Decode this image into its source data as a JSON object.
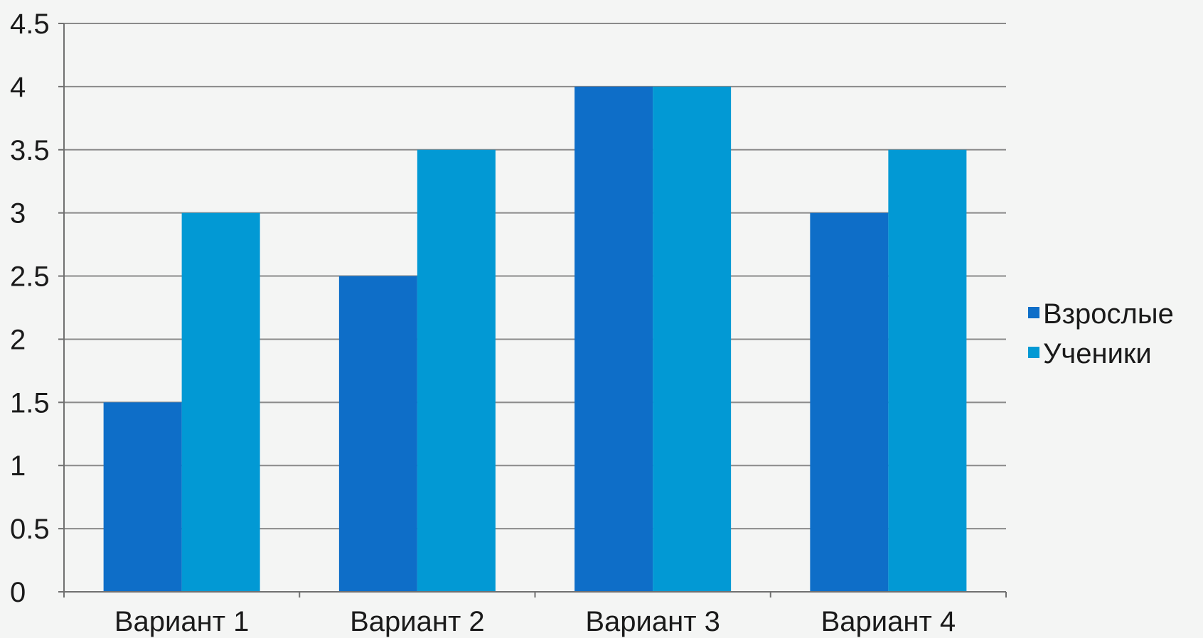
{
  "chart_data": {
    "type": "bar",
    "title": "",
    "xlabel": "",
    "ylabel": "",
    "categories": [
      "Вариант 1",
      "Вариант 2",
      "Вариант 3",
      "Вариант 4"
    ],
    "series": [
      {
        "name": "Взрослые",
        "values": [
          1.5,
          2.5,
          4,
          3
        ],
        "color": "#0e6ec8"
      },
      {
        "name": "Ученики",
        "values": [
          3,
          3.5,
          4,
          3.5
        ],
        "color": "#0299d4"
      }
    ],
    "ylim": [
      0,
      4.5
    ],
    "yticks": [
      "0",
      "0.5",
      "1",
      "1.5",
      "2",
      "2.5",
      "3",
      "3.5",
      "4",
      "4.5"
    ],
    "grid": true,
    "legend_position": "right",
    "colors": {
      "background": "#f4f5f4",
      "gridline": "#8a8a8a",
      "axis": "#707070",
      "text": "#1a1a1a"
    }
  }
}
